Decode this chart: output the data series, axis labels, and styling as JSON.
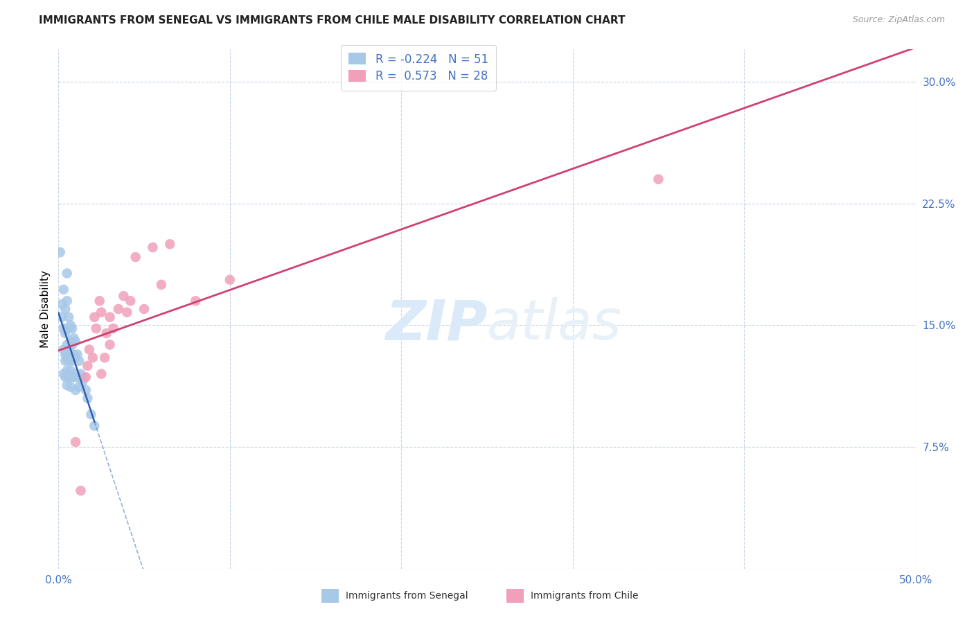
{
  "title": "IMMIGRANTS FROM SENEGAL VS IMMIGRANTS FROM CHILE MALE DISABILITY CORRELATION CHART",
  "source": "Source: ZipAtlas.com",
  "ylabel": "Male Disability",
  "xlim": [
    0.0,
    0.5
  ],
  "ylim": [
    0.0,
    0.32
  ],
  "xticks": [
    0.0,
    0.1,
    0.2,
    0.3,
    0.4,
    0.5
  ],
  "xticklabels": [
    "0.0%",
    "",
    "",
    "",
    "",
    "50.0%"
  ],
  "yticks": [
    0.0,
    0.075,
    0.15,
    0.225,
    0.3
  ],
  "yticklabels": [
    "",
    "7.5%",
    "15.0%",
    "22.5%",
    "30.0%"
  ],
  "legend_r1_label": "R = -0.224   N = 51",
  "legend_r2_label": "R =  0.573   N = 28",
  "senegal_color": "#a8c8e8",
  "chile_color": "#f0a0b8",
  "senegal_line_color": "#3060b0",
  "chile_line_color": "#d04070",
  "watermark": "ZIPatlas",
  "watermark_color": "#daeaf8",
  "bg_color": "#ffffff",
  "grid_color": "#c8d4e8",
  "tick_color": "#4472c4",
  "senegal_x": [
    0.001,
    0.002,
    0.002,
    0.003,
    0.003,
    0.003,
    0.003,
    0.004,
    0.004,
    0.004,
    0.004,
    0.004,
    0.005,
    0.005,
    0.005,
    0.005,
    0.005,
    0.005,
    0.005,
    0.006,
    0.006,
    0.006,
    0.006,
    0.006,
    0.007,
    0.007,
    0.007,
    0.007,
    0.007,
    0.008,
    0.008,
    0.008,
    0.008,
    0.009,
    0.009,
    0.009,
    0.01,
    0.01,
    0.01,
    0.01,
    0.011,
    0.011,
    0.012,
    0.012,
    0.013,
    0.014,
    0.015,
    0.016,
    0.017,
    0.019,
    0.021
  ],
  "senegal_y": [
    0.195,
    0.163,
    0.155,
    0.172,
    0.148,
    0.135,
    0.12,
    0.16,
    0.145,
    0.132,
    0.128,
    0.118,
    0.182,
    0.165,
    0.148,
    0.138,
    0.13,
    0.122,
    0.113,
    0.155,
    0.148,
    0.135,
    0.128,
    0.118,
    0.15,
    0.14,
    0.13,
    0.122,
    0.112,
    0.148,
    0.138,
    0.128,
    0.118,
    0.142,
    0.132,
    0.118,
    0.14,
    0.13,
    0.12,
    0.11,
    0.132,
    0.118,
    0.128,
    0.112,
    0.12,
    0.115,
    0.118,
    0.11,
    0.105,
    0.095,
    0.088
  ],
  "chile_x": [
    0.01,
    0.013,
    0.016,
    0.017,
    0.018,
    0.02,
    0.021,
    0.022,
    0.024,
    0.025,
    0.025,
    0.027,
    0.028,
    0.03,
    0.03,
    0.032,
    0.035,
    0.038,
    0.04,
    0.042,
    0.045,
    0.05,
    0.055,
    0.06,
    0.065,
    0.08,
    0.1,
    0.35
  ],
  "chile_y": [
    0.078,
    0.048,
    0.118,
    0.125,
    0.135,
    0.13,
    0.155,
    0.148,
    0.165,
    0.12,
    0.158,
    0.13,
    0.145,
    0.138,
    0.155,
    0.148,
    0.16,
    0.168,
    0.158,
    0.165,
    0.192,
    0.16,
    0.198,
    0.175,
    0.2,
    0.165,
    0.178,
    0.24
  ],
  "bottom_legend_labels": [
    "Immigrants from Senegal",
    "Immigrants from Chile"
  ]
}
